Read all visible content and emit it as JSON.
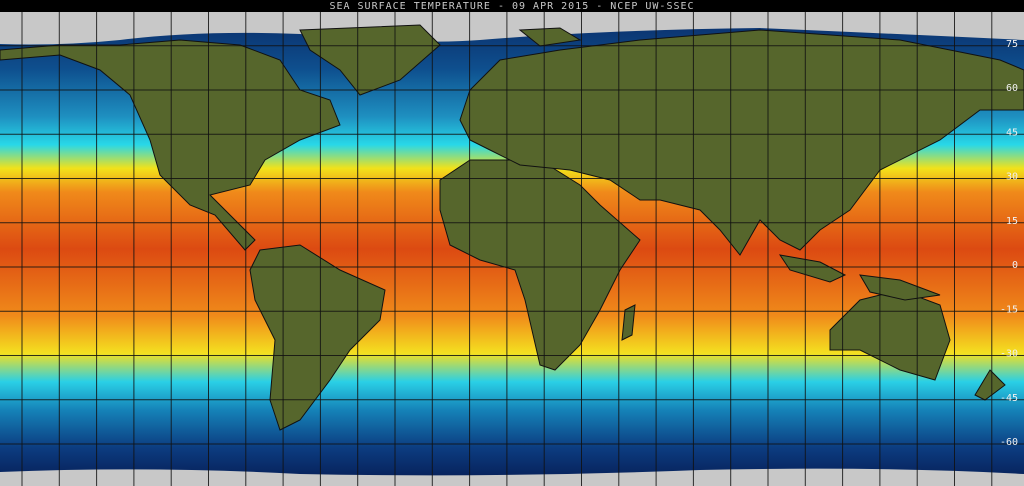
{
  "map": {
    "title": "SEA SURFACE TEMPERATURE - 09 APR 2015 - NCEP UW-SSEC",
    "lat_labels": [
      75,
      60,
      45,
      30,
      15,
      0,
      -15,
      -30,
      -45,
      -60
    ]
  }
}
